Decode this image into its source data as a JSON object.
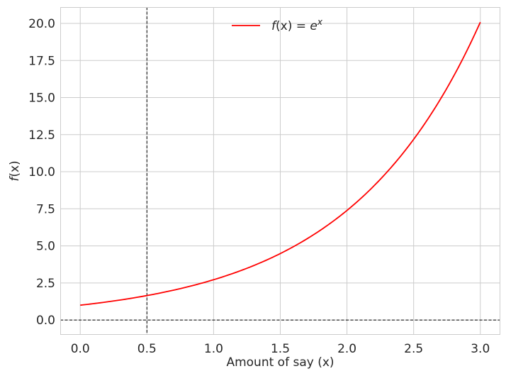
{
  "chart_data": {
    "type": "line",
    "title": "",
    "xlabel": "Amount of say (x)",
    "ylabel_italic": "f",
    "ylabel_rest": "(x)",
    "xlim": [
      -0.15,
      3.15
    ],
    "ylim": [
      -1.0,
      21.1
    ],
    "xticks": [
      0.0,
      0.5,
      1.0,
      1.5,
      2.0,
      2.5,
      3.0
    ],
    "xtick_labels": [
      "0.0",
      "0.5",
      "1.0",
      "1.5",
      "2.0",
      "2.5",
      "3.0"
    ],
    "yticks": [
      0.0,
      2.5,
      5.0,
      7.5,
      10.0,
      12.5,
      15.0,
      17.5,
      20.0
    ],
    "ytick_labels": [
      "0.0",
      "2.5",
      "5.0",
      "7.5",
      "10.0",
      "12.5",
      "15.0",
      "17.5",
      "20.0"
    ],
    "grid": true,
    "legend_placement": "upper-center",
    "series": [
      {
        "name": "f(x) = e^x",
        "legend_f": "f",
        "legend_paren": "(x) = ",
        "legend_e": "e",
        "legend_sup": "x",
        "color": "#ff0000",
        "x_start": 0.0,
        "x_end": 3.0,
        "x": [
          0.0,
          0.25,
          0.5,
          0.75,
          1.0,
          1.25,
          1.5,
          1.75,
          2.0,
          2.25,
          2.5,
          2.75,
          3.0
        ],
        "y": [
          1.0,
          1.284,
          1.649,
          2.117,
          2.718,
          3.49,
          4.482,
          5.755,
          7.389,
          9.488,
          12.182,
          15.643,
          20.086
        ]
      }
    ],
    "reference_lines": [
      {
        "orientation": "vertical",
        "value": 0.5,
        "color": "#000000",
        "style": "dashed"
      },
      {
        "orientation": "horizontal",
        "value": 0.0,
        "color": "#000000",
        "style": "dashed"
      }
    ]
  }
}
